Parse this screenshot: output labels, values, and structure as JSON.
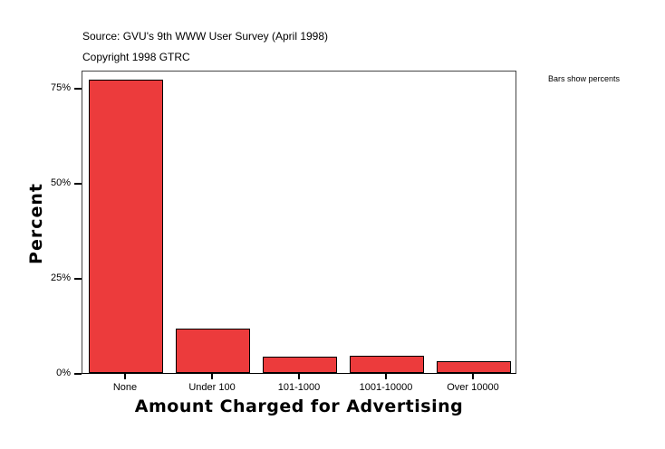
{
  "header": {
    "source": "Source: GVU's 9th WWW User Survey (April 1998)",
    "copyright": "Copyright 1998 GTRC"
  },
  "legend_note": "Bars show percents",
  "chart_data": {
    "type": "bar",
    "title": "Source: GVU's 9th WWW User Survey (April 1998)",
    "subtitle": "Copyright 1998 GTRC",
    "xlabel": "Amount Charged for Advertising",
    "ylabel": "Percent",
    "categories": [
      "None",
      "Under 100",
      "101-1000",
      "1001-10000",
      "Over 10000"
    ],
    "values": [
      76.9,
      11.4,
      4.0,
      4.3,
      2.9
    ],
    "unit": "%",
    "ylim": [
      0,
      80
    ],
    "yticks": [
      "0%",
      "25%",
      "50%",
      "75%"
    ],
    "grid": false,
    "bar_color": "#ec3b3c",
    "annotation": "Bars show percents"
  }
}
